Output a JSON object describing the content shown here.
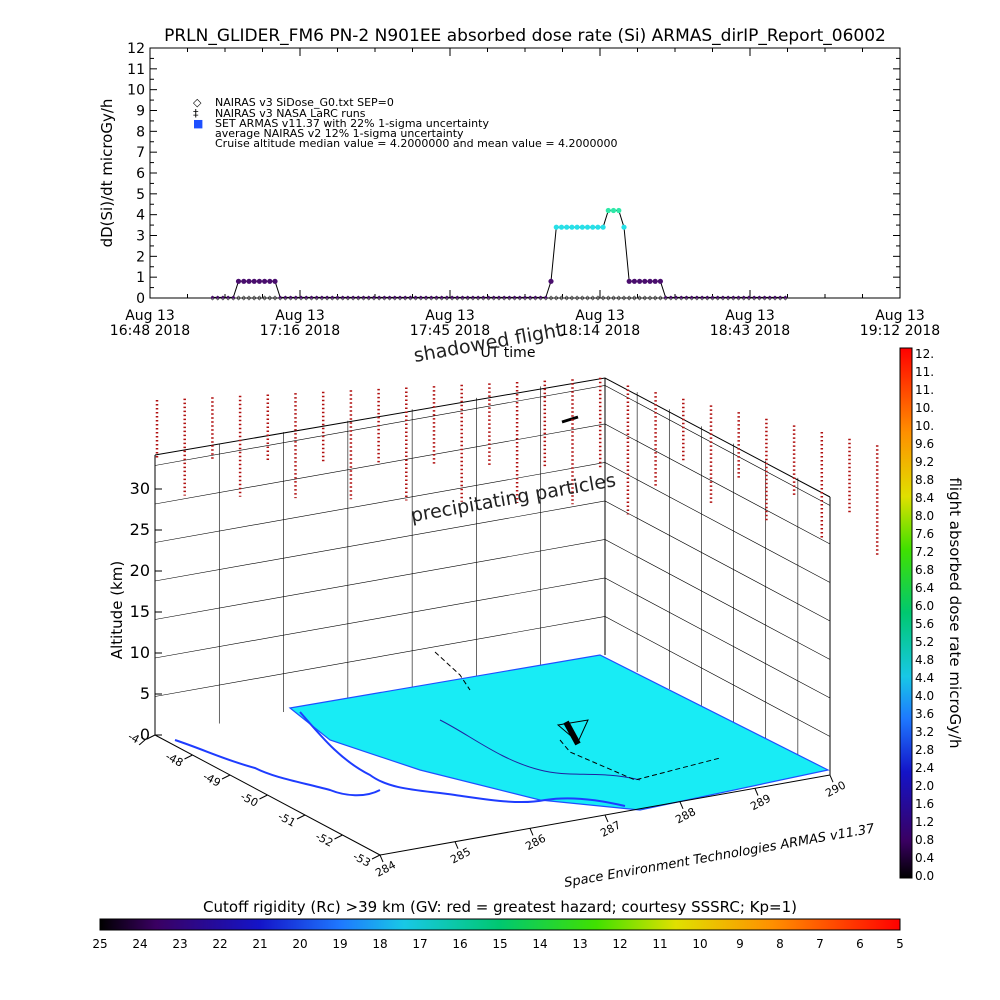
{
  "title": "PRLN_GLIDER_FM6 PN-2 N901EE absorbed dose rate (Si) ARMAS_dirIP_Report_06002",
  "top_chart": {
    "ylabel": "dD(Si)/dt microGy/h",
    "xlabel": "UT time",
    "yticks": [
      "0",
      "1",
      "2",
      "3",
      "4",
      "5",
      "6",
      "7",
      "8",
      "9",
      "10",
      "11",
      "12"
    ],
    "xticks": [
      {
        "top": "Aug 13",
        "bottom": "16:48 2018"
      },
      {
        "top": "Aug 13",
        "bottom": "17:16 2018"
      },
      {
        "top": "Aug 13",
        "bottom": "17:45 2018"
      },
      {
        "top": "Aug 13",
        "bottom": "18:14 2018"
      },
      {
        "top": "Aug 13",
        "bottom": "18:43 2018"
      },
      {
        "top": "Aug 13",
        "bottom": "19:12 2018"
      }
    ],
    "legend": [
      {
        "symbol": "◇",
        "text": "NAIRAS v3 SiDose_G0.txt SEP=0"
      },
      {
        "symbol": "‡",
        "text": "NAIRAS v3 NASA LaRC runs"
      },
      {
        "symbol": "■",
        "text": "SET ARMAS v11.37 with 22% 1-sigma uncertainty"
      },
      {
        "symbol": "",
        "text": "average NAIRAS v2 12% 1-sigma uncertainty"
      },
      {
        "symbol": "",
        "text": "Cruise altitude median value = 4.2000000 and mean value = 4.2000000"
      }
    ]
  },
  "annotations": {
    "shadowed": "shadowed flight",
    "precip": "precipitating particles",
    "credit": "Space Environment Technologies ARMAS v11.37"
  },
  "map3d": {
    "ylabel": "Altitude (km)",
    "alt_ticks": [
      "0",
      "5",
      "10",
      "15",
      "20",
      "25",
      "30"
    ],
    "lat_ticks": [
      "-47",
      "-48",
      "-49",
      "-50",
      "-51",
      "-52",
      "-53"
    ],
    "lon_ticks": [
      "284",
      "285",
      "286",
      "287",
      "288",
      "289",
      "290"
    ]
  },
  "right_colorbar": {
    "label": "flight absorbed dose rate microGy/h",
    "ticks": [
      "12.",
      "11.",
      "11.",
      "10.",
      "10.",
      "9.6",
      "9.2",
      "8.8",
      "8.4",
      "8.0",
      "7.6",
      "7.2",
      "6.8",
      "6.4",
      "6.0",
      "5.6",
      "5.2",
      "4.8",
      "4.4",
      "4.0",
      "3.6",
      "3.2",
      "2.8",
      "2.4",
      "2.0",
      "1.6",
      "1.2",
      "0.8",
      "0.4",
      "0.0"
    ]
  },
  "bottom_colorbar": {
    "label": "Cutoff rigidity (Rc) >39 km (GV: red = greatest hazard; courtesy SSSRC; Kp=1)",
    "ticks": [
      "25",
      "24",
      "23",
      "22",
      "21",
      "20",
      "19",
      "18",
      "17",
      "16",
      "15",
      "14",
      "13",
      "12",
      "11",
      "10",
      "9",
      "8",
      "7",
      "6",
      "5"
    ]
  },
  "chart_data": {
    "type": "line",
    "title": "PRLN_GLIDER_FM6 PN-2 N901EE absorbed dose rate (Si) ARMAS_dirIP_Report_06002",
    "xlabel": "UT time",
    "ylabel": "dD(Si)/dt microGy/h",
    "ylim": [
      0,
      12
    ],
    "xlim_minutes_after_1648": [
      0,
      144
    ],
    "series": [
      {
        "name": "SET ARMAS v11.37 with 22% 1-sigma uncertainty",
        "color": "#4a0e6e",
        "x": [
          12,
          13,
          14,
          15,
          16,
          17,
          18,
          19,
          20,
          21,
          22,
          23,
          24,
          25,
          26,
          27,
          28,
          29,
          30,
          31,
          32,
          33,
          34,
          35,
          36,
          37,
          38,
          39,
          40,
          41,
          42,
          43,
          44,
          45,
          46,
          47,
          48,
          49,
          50,
          51,
          52,
          53,
          54,
          55,
          56,
          57,
          58,
          59,
          60,
          61,
          62,
          63,
          64,
          65,
          66,
          67,
          68,
          69,
          70,
          71,
          72,
          73,
          74,
          75,
          76,
          77,
          78,
          79,
          80,
          81,
          82,
          83,
          84,
          85,
          86,
          87,
          88,
          89,
          90,
          91,
          92,
          93,
          94,
          95,
          96,
          97,
          98,
          99,
          100,
          101,
          102,
          103,
          104,
          105,
          106,
          107,
          108,
          109,
          110,
          111,
          112,
          113,
          114,
          115,
          116,
          117,
          118,
          119,
          120,
          121,
          122
        ],
        "values": [
          0.03,
          0.03,
          0.03,
          0.03,
          0.03,
          0.8,
          0.8,
          0.8,
          0.8,
          0.8,
          0.8,
          0.8,
          0.8,
          0.03,
          0.03,
          0.03,
          0.03,
          0.03,
          0.03,
          0.03,
          0.03,
          0.03,
          0.03,
          0.03,
          0.03,
          0.03,
          0.03,
          0.03,
          0.03,
          0.03,
          0.03,
          0.03,
          0.03,
          0.03,
          0.03,
          0.03,
          0.03,
          0.03,
          0.03,
          0.03,
          0.03,
          0.03,
          0.03,
          0.03,
          0.03,
          0.03,
          0.03,
          0.03,
          0.03,
          0.03,
          0.03,
          0.03,
          0.03,
          0.03,
          0.03,
          0.03,
          0.03,
          0.03,
          0.03,
          0.03,
          0.03,
          0.03,
          0.03,
          0.03,
          0.03,
          0.8,
          3.4,
          3.4,
          3.4,
          3.4,
          3.4,
          3.4,
          3.4,
          3.4,
          3.4,
          3.4,
          4.2,
          4.2,
          4.2,
          3.4,
          0.8,
          0.8,
          0.8,
          0.8,
          0.8,
          0.8,
          0.8,
          0.03,
          0.03,
          0.03,
          0.03,
          0.03,
          0.03,
          0.03,
          0.03,
          0.03,
          0.03,
          0.03,
          0.03,
          0.03,
          0.03,
          0.03,
          0.03,
          0.03,
          0.03,
          0.03,
          0.03,
          0.03,
          0.03,
          0.03,
          0.03
        ]
      }
    ]
  }
}
